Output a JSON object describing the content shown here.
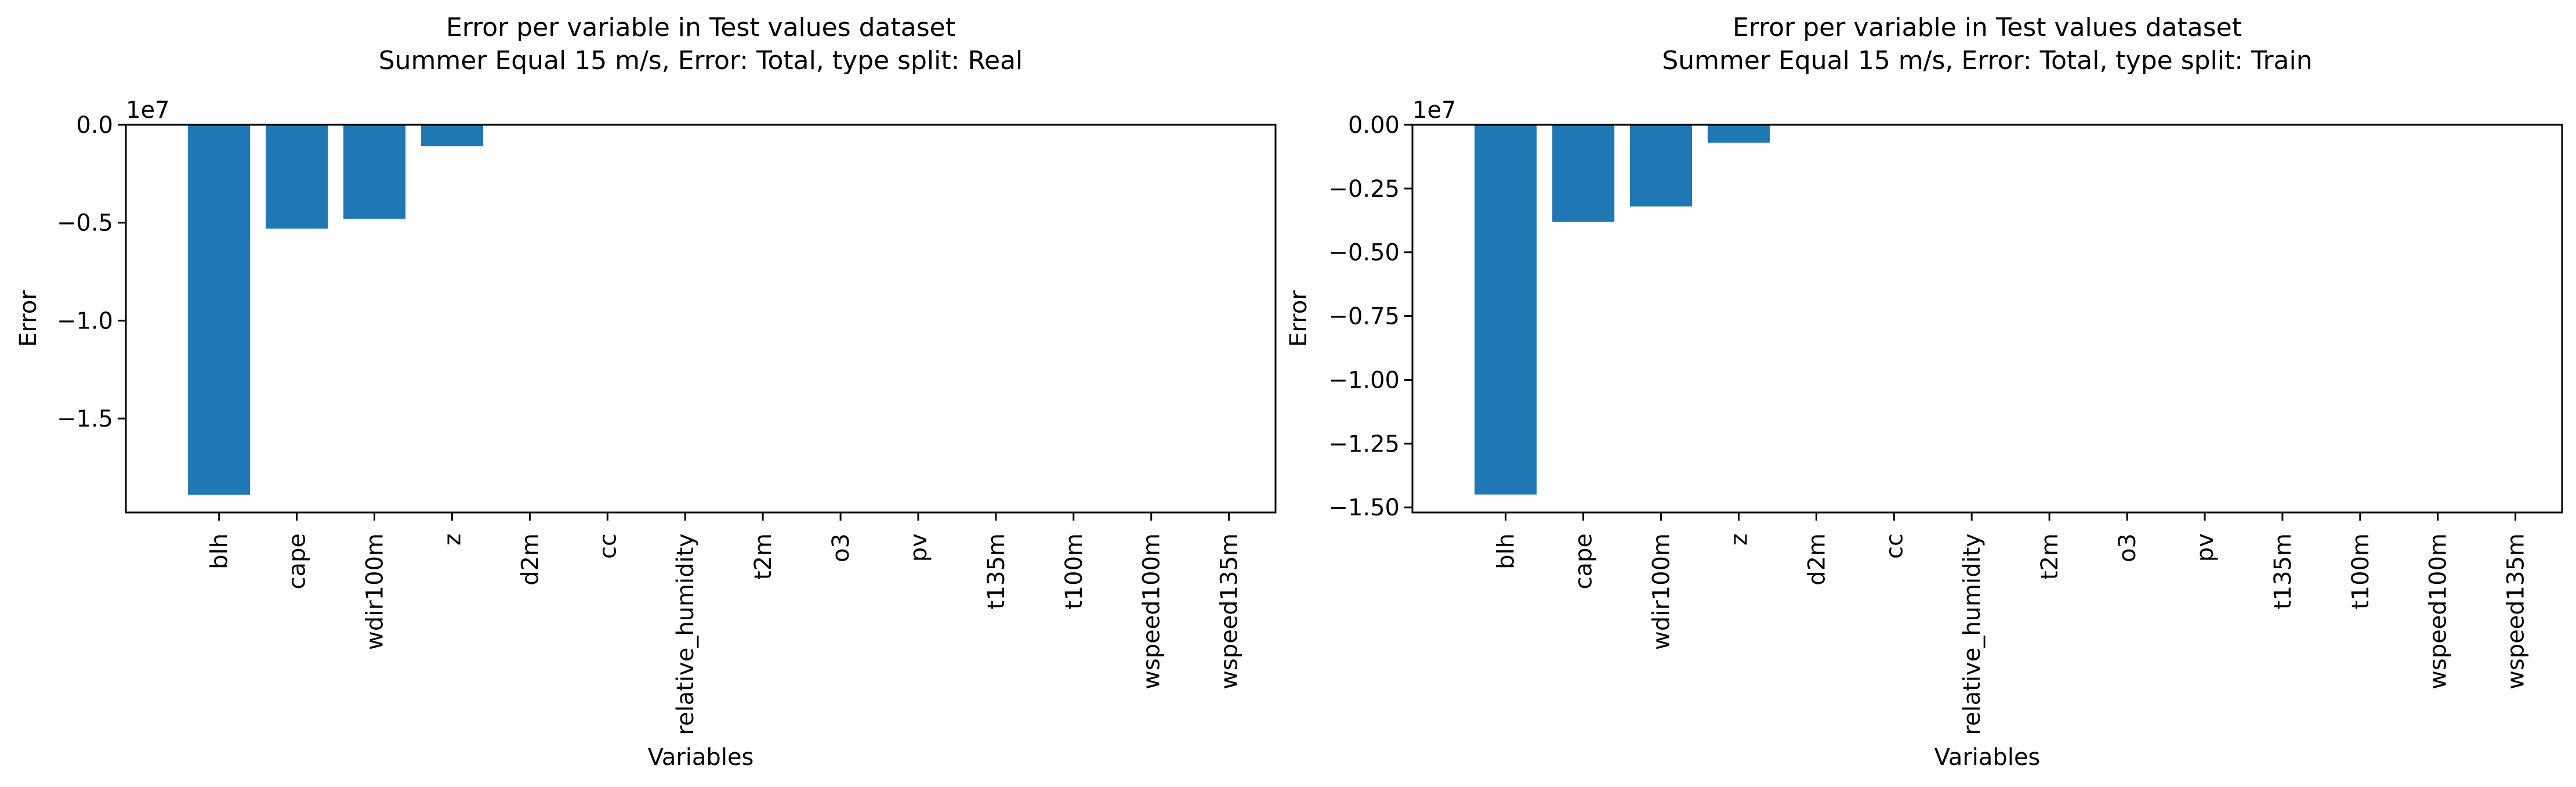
{
  "chart_data": [
    {
      "type": "bar",
      "title": "Error per variable in Test values dataset",
      "subtitle": "Summer Equal 15 m/s, Error: Total, type split: Real",
      "xlabel": "Variables",
      "ylabel": "Error",
      "offset_label": "1e7",
      "scale": 10000000,
      "categories": [
        "blh",
        "cape",
        "wdir100m",
        "z",
        "d2m",
        "cc",
        "relative_humidity",
        "t2m",
        "o3",
        "pv",
        "t135m",
        "t100m",
        "wspeed100m",
        "wspeed135m"
      ],
      "values": [
        -18900000,
        -5300000,
        -4800000,
        -1100000,
        0,
        0,
        0,
        0,
        0,
        0,
        0,
        0,
        0,
        0
      ],
      "ylim": [
        -19800000,
        0
      ],
      "yticks": [
        0,
        -5000000,
        -10000000,
        -15000000
      ],
      "ytick_labels": [
        "0.0",
        "−0.5",
        "−1.0",
        "−1.5"
      ],
      "bar_color": "#1f77b4",
      "grid": false
    },
    {
      "type": "bar",
      "title": "Error per variable in Test values dataset",
      "subtitle": "Summer Equal 15 m/s, Error: Total, type split: Train",
      "xlabel": "Variables",
      "ylabel": "Error",
      "offset_label": "1e7",
      "scale": 10000000,
      "categories": [
        "blh",
        "cape",
        "wdir100m",
        "z",
        "d2m",
        "cc",
        "relative_humidity",
        "t2m",
        "o3",
        "pv",
        "t135m",
        "t100m",
        "wspeed100m",
        "wspeed135m"
      ],
      "values": [
        -14500000,
        -3800000,
        -3200000,
        -700000,
        0,
        0,
        0,
        0,
        0,
        0,
        0,
        0,
        0,
        0
      ],
      "ylim": [
        -15200000,
        0
      ],
      "yticks": [
        0,
        -2500000,
        -5000000,
        -7500000,
        -10000000,
        -12500000,
        -15000000
      ],
      "ytick_labels": [
        "0.00",
        "−0.25",
        "−0.50",
        "−0.75",
        "−1.00",
        "−1.25",
        "−1.50"
      ],
      "bar_color": "#1f77b4",
      "grid": false
    }
  ]
}
